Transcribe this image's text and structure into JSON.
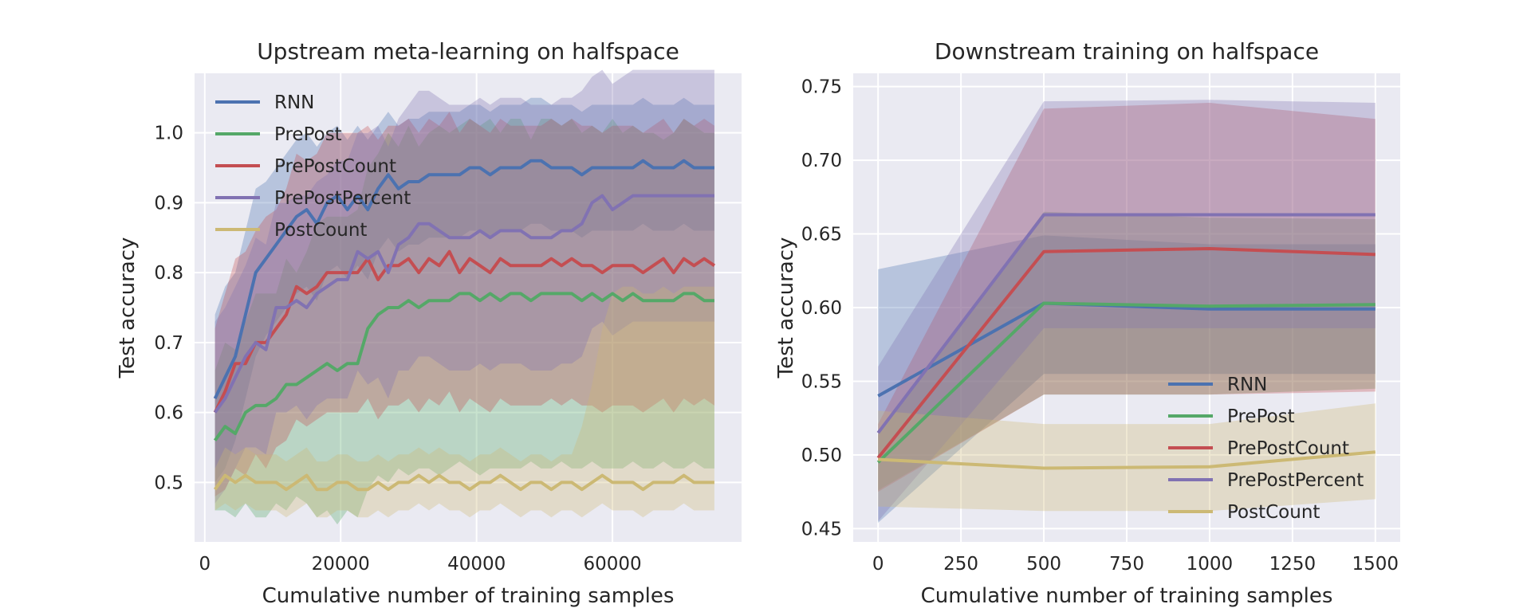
{
  "colors": {
    "RNN": "#4c72b0",
    "PrePost": "#55a868",
    "PrePostCount": "#c44e52",
    "PrePostPercent": "#8172b2",
    "PostCount": "#ccb974",
    "plot_bg": "#eaeaf2",
    "grid": "#ffffff"
  },
  "chart_data": [
    {
      "type": "line",
      "title": "Upstream meta-learning on halfspace",
      "xlabel": "Cumulative number of training samples",
      "ylabel": "Test accuracy",
      "xlim": [
        -1500,
        79000
      ],
      "ylim": [
        0.415,
        1.085
      ],
      "xticks": [
        0,
        20000,
        40000,
        60000
      ],
      "xtick_labels": [
        "0",
        "20000",
        "40000",
        "60000"
      ],
      "yticks": [
        0.5,
        0.6,
        0.7,
        0.8,
        0.9,
        1.0
      ],
      "ytick_labels": [
        "0.5",
        "0.6",
        "0.7",
        "0.8",
        "0.9",
        "1.0"
      ],
      "grid": true,
      "legend_position": "top-left",
      "shaded_band": "variability band around each mean line",
      "x": [
        1500,
        3000,
        4500,
        6000,
        7500,
        9000,
        10500,
        12000,
        13500,
        15000,
        16500,
        18000,
        19500,
        21000,
        22500,
        24000,
        25500,
        27000,
        28500,
        30000,
        31500,
        33000,
        34500,
        36000,
        37500,
        39000,
        40500,
        42000,
        43500,
        45000,
        46500,
        48000,
        49500,
        51000,
        52500,
        54000,
        55500,
        57000,
        58500,
        60000,
        61500,
        63000,
        64500,
        66000,
        67500,
        69000,
        70500,
        72000,
        73500,
        75000
      ],
      "series": [
        {
          "name": "RNN",
          "values": [
            0.62,
            0.65,
            0.68,
            0.74,
            0.8,
            0.82,
            0.84,
            0.86,
            0.88,
            0.89,
            0.87,
            0.9,
            0.91,
            0.89,
            0.91,
            0.89,
            0.92,
            0.94,
            0.92,
            0.93,
            0.93,
            0.94,
            0.94,
            0.94,
            0.94,
            0.95,
            0.95,
            0.94,
            0.95,
            0.95,
            0.95,
            0.96,
            0.96,
            0.95,
            0.95,
            0.95,
            0.94,
            0.95,
            0.95,
            0.95,
            0.95,
            0.95,
            0.96,
            0.95,
            0.95,
            0.95,
            0.96,
            0.95,
            0.95,
            0.95
          ],
          "lower": [
            0.5,
            0.52,
            0.56,
            0.62,
            0.68,
            0.71,
            0.73,
            0.75,
            0.77,
            0.78,
            0.76,
            0.8,
            0.81,
            0.79,
            0.81,
            0.79,
            0.83,
            0.85,
            0.83,
            0.84,
            0.84,
            0.85,
            0.85,
            0.85,
            0.85,
            0.86,
            0.86,
            0.85,
            0.86,
            0.86,
            0.86,
            0.87,
            0.87,
            0.86,
            0.86,
            0.86,
            0.85,
            0.86,
            0.86,
            0.86,
            0.86,
            0.86,
            0.87,
            0.86,
            0.86,
            0.86,
            0.87,
            0.86,
            0.86,
            0.86
          ],
          "upper": [
            0.74,
            0.78,
            0.8,
            0.86,
            0.92,
            0.93,
            0.95,
            0.97,
            0.99,
            1.0,
            0.98,
            1.0,
            1.01,
            0.99,
            1.01,
            0.99,
            1.01,
            1.03,
            1.01,
            1.02,
            1.02,
            1.03,
            1.03,
            1.03,
            1.03,
            1.04,
            1.04,
            1.03,
            1.04,
            1.04,
            1.04,
            1.05,
            1.05,
            1.04,
            1.04,
            1.04,
            1.03,
            1.04,
            1.04,
            1.04,
            1.04,
            1.04,
            1.05,
            1.04,
            1.04,
            1.04,
            1.05,
            1.04,
            1.04,
            1.04
          ]
        },
        {
          "name": "PrePost",
          "values": [
            0.56,
            0.58,
            0.57,
            0.6,
            0.61,
            0.61,
            0.62,
            0.64,
            0.64,
            0.65,
            0.66,
            0.67,
            0.66,
            0.67,
            0.67,
            0.72,
            0.74,
            0.75,
            0.75,
            0.76,
            0.75,
            0.76,
            0.76,
            0.76,
            0.77,
            0.77,
            0.76,
            0.77,
            0.76,
            0.77,
            0.77,
            0.76,
            0.77,
            0.77,
            0.77,
            0.77,
            0.76,
            0.77,
            0.76,
            0.77,
            0.76,
            0.77,
            0.76,
            0.76,
            0.76,
            0.76,
            0.77,
            0.77,
            0.76,
            0.76
          ],
          "lower": [
            0.46,
            0.46,
            0.45,
            0.47,
            0.45,
            0.45,
            0.47,
            0.46,
            0.48,
            0.47,
            0.45,
            0.46,
            0.44,
            0.46,
            0.45,
            0.49,
            0.51,
            0.5,
            0.52,
            0.51,
            0.52,
            0.52,
            0.51,
            0.52,
            0.53,
            0.52,
            0.51,
            0.52,
            0.52,
            0.52,
            0.52,
            0.53,
            0.52,
            0.52,
            0.53,
            0.52,
            0.52,
            0.53,
            0.52,
            0.52,
            0.52,
            0.53,
            0.52,
            0.52,
            0.53,
            0.52,
            0.52,
            0.53,
            0.52,
            0.52
          ],
          "upper": [
            0.66,
            0.7,
            0.69,
            0.73,
            0.77,
            0.77,
            0.77,
            0.82,
            0.8,
            0.83,
            0.87,
            0.88,
            0.88,
            0.88,
            0.89,
            0.95,
            0.97,
            1.0,
            0.98,
            1.01,
            0.98,
            1.0,
            1.01,
            1.0,
            1.01,
            1.02,
            1.01,
            1.02,
            1.0,
            1.02,
            1.02,
            0.99,
            1.02,
            1.02,
            1.01,
            1.02,
            1.0,
            1.01,
            1.0,
            1.02,
            1.0,
            1.01,
            1.0,
            1.0,
            0.99,
            1.0,
            1.02,
            1.01,
            1.0,
            1.0
          ]
        },
        {
          "name": "PrePostCount",
          "values": [
            0.6,
            0.63,
            0.67,
            0.67,
            0.7,
            0.7,
            0.72,
            0.74,
            0.78,
            0.77,
            0.78,
            0.8,
            0.8,
            0.8,
            0.8,
            0.82,
            0.79,
            0.81,
            0.81,
            0.82,
            0.8,
            0.82,
            0.81,
            0.83,
            0.8,
            0.82,
            0.81,
            0.8,
            0.82,
            0.81,
            0.81,
            0.81,
            0.81,
            0.82,
            0.81,
            0.82,
            0.81,
            0.81,
            0.8,
            0.81,
            0.81,
            0.81,
            0.8,
            0.81,
            0.82,
            0.8,
            0.82,
            0.81,
            0.82,
            0.81
          ],
          "lower": [
            0.48,
            0.49,
            0.52,
            0.51,
            0.54,
            0.52,
            0.55,
            0.56,
            0.59,
            0.58,
            0.59,
            0.6,
            0.6,
            0.6,
            0.6,
            0.62,
            0.59,
            0.61,
            0.61,
            0.62,
            0.6,
            0.62,
            0.61,
            0.63,
            0.6,
            0.62,
            0.61,
            0.6,
            0.62,
            0.61,
            0.61,
            0.61,
            0.61,
            0.62,
            0.61,
            0.62,
            0.61,
            0.61,
            0.6,
            0.61,
            0.61,
            0.61,
            0.6,
            0.61,
            0.62,
            0.6,
            0.62,
            0.61,
            0.62,
            0.61
          ],
          "upper": [
            0.72,
            0.77,
            0.82,
            0.83,
            0.86,
            0.88,
            0.89,
            0.92,
            0.97,
            0.96,
            0.97,
            1.0,
            1.0,
            1.0,
            1.0,
            1.01,
            0.99,
            1.01,
            1.01,
            1.02,
            1.0,
            1.02,
            1.01,
            1.03,
            1.0,
            1.02,
            1.01,
            1.0,
            1.02,
            1.01,
            1.01,
            1.01,
            1.01,
            1.02,
            1.01,
            1.02,
            1.01,
            1.01,
            1.0,
            1.01,
            1.01,
            1.01,
            1.0,
            1.01,
            1.02,
            1.0,
            1.02,
            1.01,
            1.02,
            1.01
          ]
        },
        {
          "name": "PrePostPercent",
          "values": [
            0.6,
            0.62,
            0.65,
            0.68,
            0.7,
            0.69,
            0.75,
            0.75,
            0.76,
            0.75,
            0.77,
            0.78,
            0.79,
            0.79,
            0.83,
            0.82,
            0.83,
            0.8,
            0.84,
            0.85,
            0.87,
            0.87,
            0.86,
            0.85,
            0.85,
            0.85,
            0.86,
            0.85,
            0.86,
            0.86,
            0.86,
            0.85,
            0.85,
            0.85,
            0.86,
            0.86,
            0.87,
            0.9,
            0.91,
            0.89,
            0.9,
            0.91,
            0.91,
            0.91,
            0.91,
            0.91,
            0.91,
            0.91,
            0.91,
            0.91
          ],
          "lower": [
            0.47,
            0.49,
            0.52,
            0.55,
            0.55,
            0.54,
            0.6,
            0.6,
            0.61,
            0.59,
            0.61,
            0.62,
            0.62,
            0.62,
            0.66,
            0.64,
            0.65,
            0.62,
            0.66,
            0.66,
            0.68,
            0.68,
            0.67,
            0.66,
            0.66,
            0.66,
            0.67,
            0.66,
            0.67,
            0.67,
            0.67,
            0.66,
            0.66,
            0.66,
            0.67,
            0.67,
            0.68,
            0.72,
            0.73,
            0.71,
            0.72,
            0.73,
            0.73,
            0.73,
            0.73,
            0.73,
            0.73,
            0.73,
            0.73,
            0.73
          ],
          "upper": [
            0.73,
            0.75,
            0.78,
            0.81,
            0.85,
            0.84,
            0.9,
            0.9,
            0.91,
            0.91,
            0.93,
            0.94,
            0.96,
            0.96,
            1.0,
            1.0,
            1.01,
            0.98,
            1.02,
            1.04,
            1.06,
            1.06,
            1.05,
            1.04,
            1.04,
            1.04,
            1.05,
            1.04,
            1.05,
            1.05,
            1.05,
            1.04,
            1.04,
            1.04,
            1.05,
            1.05,
            1.06,
            1.08,
            1.09,
            1.07,
            1.08,
            1.09,
            1.09,
            1.09,
            1.09,
            1.09,
            1.09,
            1.09,
            1.09,
            1.09
          ]
        },
        {
          "name": "PostCount",
          "values": [
            0.49,
            0.51,
            0.5,
            0.51,
            0.5,
            0.5,
            0.5,
            0.49,
            0.5,
            0.51,
            0.49,
            0.49,
            0.5,
            0.5,
            0.49,
            0.49,
            0.5,
            0.49,
            0.5,
            0.5,
            0.51,
            0.5,
            0.51,
            0.5,
            0.5,
            0.49,
            0.5,
            0.5,
            0.51,
            0.5,
            0.49,
            0.5,
            0.5,
            0.49,
            0.5,
            0.5,
            0.49,
            0.5,
            0.51,
            0.5,
            0.5,
            0.5,
            0.49,
            0.5,
            0.5,
            0.5,
            0.51,
            0.5,
            0.5,
            0.5
          ],
          "lower": [
            0.46,
            0.47,
            0.46,
            0.47,
            0.46,
            0.46,
            0.46,
            0.45,
            0.46,
            0.47,
            0.45,
            0.45,
            0.46,
            0.46,
            0.45,
            0.45,
            0.46,
            0.45,
            0.46,
            0.46,
            0.47,
            0.46,
            0.47,
            0.46,
            0.46,
            0.45,
            0.46,
            0.46,
            0.47,
            0.46,
            0.45,
            0.46,
            0.46,
            0.45,
            0.46,
            0.46,
            0.45,
            0.46,
            0.47,
            0.46,
            0.46,
            0.46,
            0.45,
            0.46,
            0.46,
            0.46,
            0.47,
            0.46,
            0.46,
            0.46
          ],
          "upper": [
            0.52,
            0.55,
            0.54,
            0.55,
            0.54,
            0.54,
            0.54,
            0.53,
            0.54,
            0.55,
            0.53,
            0.53,
            0.54,
            0.54,
            0.53,
            0.53,
            0.54,
            0.53,
            0.54,
            0.54,
            0.55,
            0.54,
            0.55,
            0.54,
            0.54,
            0.53,
            0.54,
            0.54,
            0.55,
            0.54,
            0.53,
            0.54,
            0.54,
            0.53,
            0.54,
            0.54,
            0.58,
            0.64,
            0.72,
            0.77,
            0.78,
            0.78,
            0.77,
            0.77,
            0.78,
            0.77,
            0.78,
            0.78,
            0.78,
            0.78
          ]
        }
      ]
    },
    {
      "type": "line",
      "title": "Downstream training on halfspace",
      "xlabel": "Cumulative number of training samples",
      "ylabel": "Test accuracy",
      "xlim": [
        -75,
        1575
      ],
      "ylim": [
        0.441,
        0.759
      ],
      "xticks": [
        0,
        250,
        500,
        750,
        1000,
        1250,
        1500
      ],
      "xtick_labels": [
        "0",
        "250",
        "500",
        "750",
        "1000",
        "1250",
        "1500"
      ],
      "yticks": [
        0.45,
        0.5,
        0.55,
        0.6,
        0.65,
        0.7,
        0.75
      ],
      "ytick_labels": [
        "0.45",
        "0.50",
        "0.55",
        "0.60",
        "0.65",
        "0.70",
        "0.75"
      ],
      "grid": true,
      "legend_position": "lower-right",
      "shaded_band": "variability band around each mean line",
      "x": [
        0,
        500,
        1000,
        1500
      ],
      "series": [
        {
          "name": "RNN",
          "values": [
            0.54,
            0.603,
            0.599,
            0.599
          ],
          "lower": [
            0.454,
            0.555,
            0.555,
            0.555
          ],
          "upper": [
            0.626,
            0.649,
            0.643,
            0.643
          ]
        },
        {
          "name": "PrePost",
          "values": [
            0.495,
            0.603,
            0.601,
            0.602
          ],
          "lower": [
            0.476,
            0.541,
            0.541,
            0.545
          ],
          "upper": [
            0.514,
            0.665,
            0.661,
            0.66
          ]
        },
        {
          "name": "PrePostCount",
          "values": [
            0.498,
            0.638,
            0.64,
            0.636
          ],
          "lower": [
            0.475,
            0.541,
            0.541,
            0.543
          ],
          "upper": [
            0.521,
            0.735,
            0.739,
            0.728
          ]
        },
        {
          "name": "PrePostPercent",
          "values": [
            0.515,
            0.663,
            0.663,
            0.663
          ],
          "lower": [
            0.455,
            0.586,
            0.586,
            0.586
          ],
          "upper": [
            0.56,
            0.74,
            0.741,
            0.739
          ]
        },
        {
          "name": "PostCount",
          "values": [
            0.497,
            0.491,
            0.492,
            0.502
          ],
          "lower": [
            0.465,
            0.462,
            0.462,
            0.47
          ],
          "upper": [
            0.53,
            0.521,
            0.521,
            0.535
          ]
        }
      ]
    }
  ]
}
